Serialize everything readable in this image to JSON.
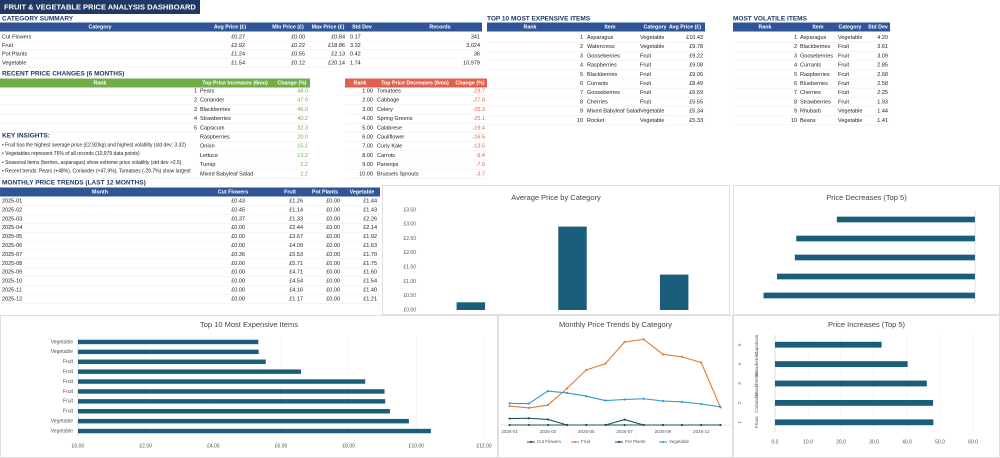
{
  "header": {
    "title": "FRUIT & VEGETABLE PRICE ANALYSIS DASHBOARD"
  },
  "category_summary": {
    "title": "CATEGORY SUMMARY",
    "headers": [
      "Category",
      "Avg Price (£)",
      "Min Price (£)",
      "Max Price (£)",
      "Std Dev",
      "Records"
    ],
    "rows": [
      [
        "Cut Flowers",
        "£0.27",
        "£0.00",
        "£0.84",
        "0.17",
        "341"
      ],
      [
        "Fruit",
        "£2.92",
        "£0.22",
        "£18.86",
        "3.32",
        "3,024"
      ],
      [
        "Pot Plants",
        "£1.24",
        "£0.55",
        "£2.13",
        "0.42",
        "36"
      ],
      [
        "Vegetable",
        "£1.54",
        "£0.12",
        "£20.14",
        "1.74",
        "10,979"
      ]
    ]
  },
  "top_expensive": {
    "title": "TOP 10 MOST EXPENSIVE ITEMS",
    "headers": [
      "Rank",
      "Item",
      "Category",
      "Avg Price (£)"
    ],
    "rows": [
      [
        "1",
        "Asparagus",
        "Vegetable",
        "£10.43"
      ],
      [
        "2",
        "Watercress",
        "Vegetable",
        "£9.78"
      ],
      [
        "3",
        "Gooseberries",
        "Fruit",
        "£9.22"
      ],
      [
        "4",
        "Raspberries",
        "Fruit",
        "£9.08"
      ],
      [
        "5",
        "Blackberries",
        "Fruit",
        "£9.06"
      ],
      [
        "6",
        "Currants",
        "Fruit",
        "£8.49"
      ],
      [
        "7",
        "Gooseberries",
        "Fruit",
        "£6.59"
      ],
      [
        "8",
        "Cherries",
        "Fruit",
        "£5.55"
      ],
      [
        "9",
        "Mixed Babyleaf Salad",
        "Vegetable",
        "£5.34"
      ],
      [
        "10",
        "Rocket",
        "Vegetable",
        "£5.33"
      ]
    ]
  },
  "most_volatile": {
    "title": "MOST VOLATILE ITEMS",
    "headers": [
      "Rank",
      "Item",
      "Category",
      "Std Dev"
    ],
    "rows": [
      [
        "1",
        "Asparagus",
        "Vegetable",
        "4.20"
      ],
      [
        "2",
        "Blackberries",
        "Fruit",
        "3.61"
      ],
      [
        "3",
        "Gooseberries",
        "Fruit",
        "3.09"
      ],
      [
        "4",
        "Currants",
        "Fruit",
        "2.85"
      ],
      [
        "5",
        "Raspberries",
        "Fruit",
        "2.68"
      ],
      [
        "6",
        "Blueberries",
        "Fruit",
        "2.58"
      ],
      [
        "7",
        "Cherries",
        "Fruit",
        "2.25"
      ],
      [
        "8",
        "Strawberries",
        "Fruit",
        "1.93"
      ],
      [
        "9",
        "Rhubarb",
        "Vegetable",
        "1.44"
      ],
      [
        "10",
        "Beans",
        "Vegetable",
        "1.41"
      ]
    ]
  },
  "recent_changes": {
    "title": "RECENT PRICE CHANGES (6 MONTHS)",
    "increases": {
      "headers": [
        "Rank",
        "Top Price Increases (6mo)",
        "Change (%)"
      ],
      "rows": [
        [
          "1",
          "Pears",
          "48.0"
        ],
        [
          "2",
          "Coriander",
          "47.9"
        ],
        [
          "3",
          "Blackberries",
          "46.0"
        ],
        [
          "4",
          "Strawberries",
          "40.2"
        ],
        [
          "5",
          "Capsicum",
          "32.3"
        ],
        [
          null,
          "Raspberries",
          "20.0"
        ],
        [
          null,
          "Onion",
          "15.1"
        ],
        [
          null,
          "Lettuce",
          "13.2"
        ],
        [
          null,
          "Turnip",
          "2.2"
        ],
        [
          null,
          "Mixed Babyleaf Salad",
          "2.2"
        ]
      ]
    },
    "decreases": {
      "headers": [
        "Rank",
        "Top Price Decreases (6mo)",
        "Change (%)"
      ],
      "rows": [
        [
          "1.00",
          "Tomatoes",
          "-29.7"
        ],
        [
          "2.00",
          "Cabbage",
          "-27.8"
        ],
        [
          "3.00",
          "Celery",
          "-25.3"
        ],
        [
          "4.00",
          "Spring Greens",
          "-25.1"
        ],
        [
          "5.00",
          "Calabrese",
          "-19.4"
        ],
        [
          "6.00",
          "Cauliflower",
          "-16.5"
        ],
        [
          "7.00",
          "Curly Kale",
          "-13.5"
        ],
        [
          "8.00",
          "Carrots",
          "-9.4"
        ],
        [
          "9.00",
          "Parsnips",
          "-7.9"
        ],
        [
          "10.00",
          "Brussels Sprouts",
          "-3.7"
        ]
      ]
    }
  },
  "key_insights": {
    "title": "KEY INSIGHTS:",
    "items": [
      "• Fruit has the highest average price (£2.92/kg) and highest volatility (std dev: 3.32)",
      "• Vegetables represent 76% of all records (10,979 data points)",
      "• Seasonal items (berries, asparagus) show extreme price volatility (std dev >2.5)",
      "• Recent trends: Pears (+48%), Coriander (+47.9%), Tomatoes (-29.7%) show largest"
    ]
  },
  "monthly_trends": {
    "title": "MONTHLY PRICE TRENDS (LAST 12 MONTHS)",
    "headers": [
      "Month",
      "Cut Flowers",
      "Fruit",
      "Pot Plants",
      "Vegetable"
    ],
    "rows": [
      [
        "2025-01",
        "£0.43",
        "£1.26",
        "£0.00",
        "£1.44"
      ],
      [
        "2025-02",
        "£0.45",
        "£1.14",
        "£0.00",
        "£1.43"
      ],
      [
        "2025-03",
        "£0.37",
        "£1.33",
        "£0.00",
        "£2.26"
      ],
      [
        "2025-04",
        "£0.00",
        "£2.44",
        "£0.00",
        "£2.14"
      ],
      [
        "2025-05",
        "£0.00",
        "£3.67",
        "£0.00",
        "£1.92"
      ],
      [
        "2025-06",
        "£0.00",
        "£4.09",
        "£0.00",
        "£1.63"
      ],
      [
        "2025-07",
        "£0.36",
        "£5.53",
        "£0.00",
        "£1.70"
      ],
      [
        "2025-08",
        "£0.00",
        "£5.71",
        "£0.00",
        "£1.75"
      ],
      [
        "2025-09",
        "£0.00",
        "£4.71",
        "£0.00",
        "£1.60"
      ],
      [
        "2025-10",
        "£0.00",
        "£4.54",
        "£0.00",
        "£1.54"
      ],
      [
        "2025-11",
        "£0.00",
        "£4.16",
        "£0.00",
        "£1.40"
      ],
      [
        "2025-12",
        "£0.00",
        "£1.17",
        "£0.00",
        "£1.21"
      ]
    ]
  },
  "chart_data": [
    {
      "type": "bar",
      "title": "Average Price by Category",
      "categories": [
        null,
        null,
        null
      ],
      "values": [
        0.27,
        2.92,
        1.24
      ],
      "color": "#1b5e7b",
      "ylim": [
        0,
        3.5
      ],
      "yticks": [
        {
          "value": 0,
          "label": "£0.00"
        },
        {
          "value": 0.5,
          "label": "£0.50"
        },
        {
          "value": 1,
          "label": "£1.00"
        },
        {
          "value": 1.5,
          "label": "£1.50"
        },
        {
          "value": 2,
          "label": "£2.00"
        },
        {
          "value": 2.5,
          "label": "£2.50"
        },
        {
          "value": 3,
          "label": "£3.00"
        },
        {
          "value": 3.5,
          "label": "£3.50"
        }
      ],
      "grid": false
    },
    {
      "type": "barh",
      "title": "Price Decreases (Top 5)",
      "categories": [
        null,
        null,
        null,
        null,
        null
      ],
      "values": [
        -19.4,
        -25.1,
        -25.3,
        -27.8,
        -29.7
      ],
      "color": "#1b5e7b",
      "xlim": [
        -33,
        0
      ]
    },
    {
      "type": "barh",
      "title": "Top 10 Most Expensive Items",
      "categories": [
        "Vegetable",
        "Vegetable",
        "Fruit",
        "Fruit",
        "Fruit",
        "Fruit",
        "Fruit",
        "Fruit",
        "Vegetable",
        "Vegetable"
      ],
      "values": [
        5.33,
        5.34,
        5.55,
        6.59,
        8.49,
        9.06,
        9.08,
        9.22,
        9.78,
        10.43
      ],
      "color": "#1b5e7b",
      "xlim": [
        0,
        12
      ],
      "xticks": [
        {
          "value": 0,
          "label": "£0.00"
        },
        {
          "value": 2,
          "label": "£2.00"
        },
        {
          "value": 4,
          "label": "£4.00"
        },
        {
          "value": 6,
          "label": "£6.00"
        },
        {
          "value": 8,
          "label": "£8.00"
        },
        {
          "value": 10,
          "label": "£10.00"
        },
        {
          "value": 12,
          "label": "£12.00"
        }
      ]
    },
    {
      "type": "line",
      "title": "Monthly Price Trends by Category",
      "categories": [
        "2025-01",
        null,
        "2025-03",
        null,
        "2025-05",
        null,
        "2025-07",
        null,
        "2025-09",
        null,
        "2025-11",
        null
      ],
      "series": [
        {
          "name": "Cut Flowers",
          "color": "#1f4e5f",
          "values": [
            0.43,
            0.45,
            0.37,
            0,
            0,
            0,
            0.36,
            0,
            0,
            0,
            0,
            0
          ]
        },
        {
          "name": "Fruit",
          "color": "#e07b39",
          "values": [
            1.26,
            1.14,
            1.33,
            2.44,
            3.67,
            4.09,
            5.53,
            5.71,
            4.71,
            4.54,
            4.16,
            1.17
          ]
        },
        {
          "name": "Pot Plants",
          "color": "#17594a",
          "values": [
            0,
            0,
            0,
            0,
            0,
            0,
            0,
            0,
            0,
            0,
            0,
            0
          ]
        },
        {
          "name": "Vegetable",
          "color": "#2e9bc6",
          "values": [
            1.44,
            1.43,
            2.26,
            2.14,
            1.92,
            1.63,
            1.7,
            1.75,
            1.6,
            1.54,
            1.4,
            1.21
          ]
        }
      ],
      "ylim": [
        0,
        6
      ],
      "legend": "bottom"
    },
    {
      "type": "barh",
      "title": "Price Increases (Top 5)",
      "categories": [
        "Capsicum",
        "Strawberries",
        "Blackberries",
        "Coriander",
        "Pears"
      ],
      "ranks": [
        "5",
        "4",
        "3",
        "2",
        "1"
      ],
      "values": [
        32.3,
        40.2,
        46.0,
        47.9,
        48.0
      ],
      "color": "#1b5e7b",
      "xlim": [
        0,
        60
      ],
      "xticks": [
        {
          "value": 0,
          "label": "0.0"
        },
        {
          "value": 10,
          "label": "10.0"
        },
        {
          "value": 20,
          "label": "20.0"
        },
        {
          "value": 30,
          "label": "30.0"
        },
        {
          "value": 40,
          "label": "40.0"
        },
        {
          "value": 50,
          "label": "50.0"
        },
        {
          "value": 60,
          "label": "60.0"
        }
      ]
    }
  ]
}
